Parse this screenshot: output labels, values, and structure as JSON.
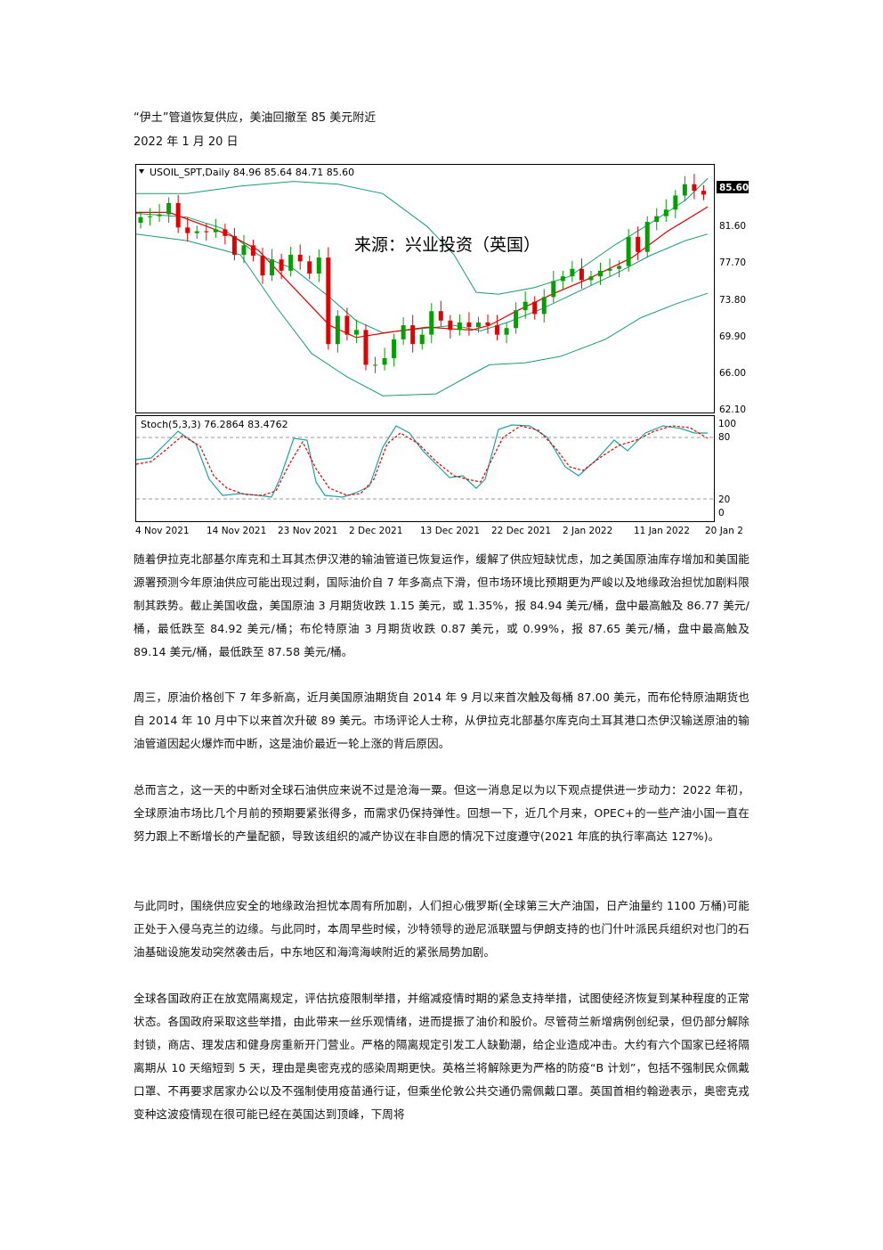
{
  "header": {
    "headline": "“伊土”管道恢复供应，美油回撤至 85 美元附近",
    "date": "2022 年 1 月 20 日"
  },
  "chart": {
    "main_title": "USOIL_SPT,Daily  84.96 85.64 84.71 85.60",
    "watermark": "来源：兴业投资（英国）",
    "price_ticks": [
      "85.60",
      "81.60",
      "77.70",
      "73.80",
      "69.90",
      "66.00",
      "62.10"
    ],
    "stoch_title": "Stoch(5,3,3) 76.2864 83.4762",
    "stoch_ticks": [
      "100",
      "80",
      "20",
      "0"
    ],
    "date_ticks": [
      "4 Nov 2021",
      "14 Nov 2021",
      "23 Nov 2021",
      "2 Dec 2021",
      "13 Dec 2021",
      "22 Dec 2021",
      "2 Jan 2022",
      "11 Jan 2022",
      "20 Jan 2"
    ],
    "colors": {
      "up": "#00a000",
      "down": "#e00000",
      "bands": "#1a9a6e",
      "ma": "#e00000",
      "stoch_main": "#20a0a0",
      "stoch_signal": "#e00000",
      "current_price_bg": "#000000"
    }
  },
  "paragraphs": [
    "随着伊拉克北部基尔库克和土耳其杰伊汉港的输油管道已恢复运作，缓解了供应短缺忧虑，加之美国原油库存增加和美国能源署预测今年原油供应可能出现过剩，国际油价自 7 年多高点下滑，但市场环境比预期更为严峻以及地缘政治担忧加剧料限制其跌势。截止美国收盘，美国原油 3 月期货收跌 1.15 美元，或 1.35%，报 84.94 美元/桶，盘中最高触及 86.77 美元/桶，最低跌至 84.92 美元/桶；布伦特原油 3 月期货收跌 0.87 美元，或 0.99%，报 87.65 美元/桶，盘中最高触及 89.14 美元/桶，最低跌至 87.58 美元/桶。",
    "周三，原油价格创下 7 年多新高，近月美国原油期货自 2014 年 9 月以来首次触及每桶 87.00 美元，而布伦特原油期货也自 2014 年 10 月中下以来首次升破 89 美元。市场评论人士称，从伊拉克北部基尔库克向土耳其港口杰伊汉输送原油的输油管道因起火爆炸而中断，这是油价最近一轮上涨的背后原因。",
    "总而言之，这一天的中断对全球石油供应来说不过是沧海一粟。但这一消息足以为以下观点提供进一步动力：2022 年初，全球原油市场比几个月前的预期要紧张得多，而需求仍保持弹性。回想一下，近几个月来，OPEC+的一些产油小国一直在努力跟上不断增长的产量配额，导致该组织的减产协议在非自愿的情况下过度遵守(2021 年底的执行率高达 127%)。",
    "与此同时，围绕供应安全的地缘政治担忧本周有所加剧，人们担心俄罗斯(全球第三大产油国，日产油量约 1100 万桶)可能正处于入侵乌克兰的边缘。与此同时，本周早些时候，沙特领导的逊尼派联盟与伊朗支持的也门什叶派民兵组织对也门的石油基础设施发动突然袭击后，中东地区和海湾海峡附近的紧张局势加剧。",
    "全球各国政府正在放宽隔离规定，评估抗疫限制举措，并缩减疫情时期的紧急支持举措，试图使经济恢复到某种程度的正常状态。各国政府采取这些举措，由此带来一丝乐观情绪，进而提振了油价和股价。尽管荷兰新增病例创纪录，但仍部分解除封锁，商店、理发店和健身房重新开门营业。严格的隔离规定引发工人缺勤潮，给企业造成冲击。大约有六个国家已经将隔离期从 10 天缩短到 5 天，理由是奥密克戎的感染周期更快。英格兰将解除更为严格的防疫“B 计划”，包括不强制民众佩戴口罩、不再要求居家办公以及不强制使用疫苗通行证，但乘坐伦敦公共交通仍需佩戴口罩。英国首相约翰逊表示，奥密克戎变种这波疫情现在很可能已经在英国达到顶峰，下周将"
  ]
}
